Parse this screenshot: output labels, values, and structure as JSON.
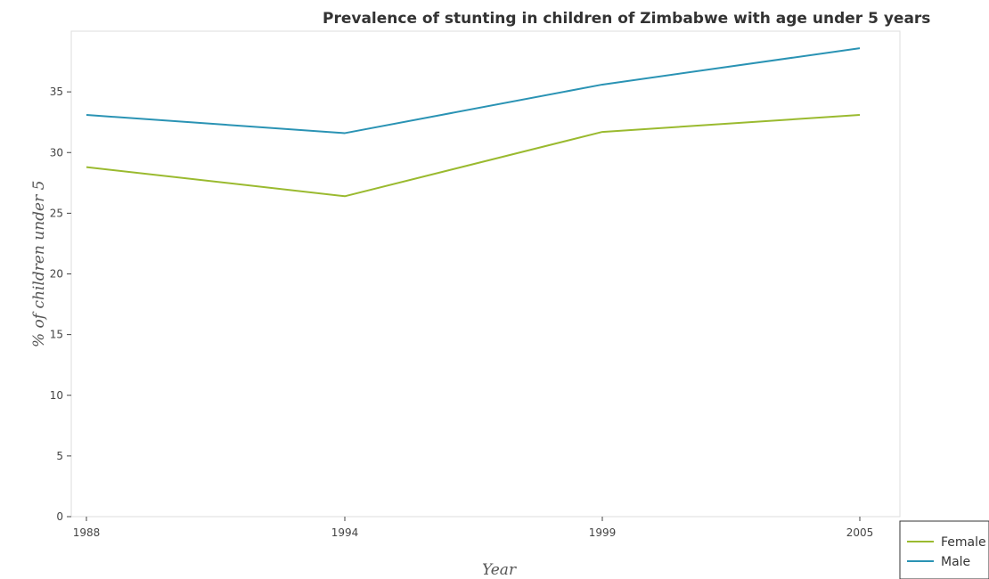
{
  "chart_data": {
    "type": "line",
    "title": "Prevalence of stunting in children of Zimbabwe with age under 5 years",
    "xlabel": "Year",
    "ylabel": "% of children under 5",
    "categories": [
      "1988",
      "1994",
      "1999",
      "2005"
    ],
    "series": [
      {
        "name": "Female",
        "color": "#9aba2f",
        "values": [
          28.8,
          26.4,
          31.7,
          33.1
        ]
      },
      {
        "name": "Male",
        "color": "#2a93b4",
        "values": [
          33.1,
          31.6,
          35.6,
          38.6
        ]
      }
    ],
    "ylim": [
      0,
      40
    ],
    "yticks": [
      "0",
      "5",
      "10",
      "15",
      "20",
      "25",
      "30",
      "35"
    ],
    "grid": false,
    "legend_position": "bottom-right"
  }
}
